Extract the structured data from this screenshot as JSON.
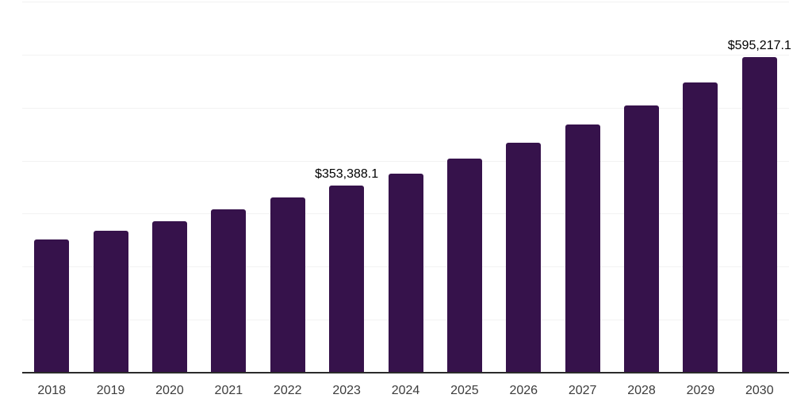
{
  "chart_data": {
    "type": "bar",
    "title": "",
    "xlabel": "",
    "ylabel": "",
    "categories": [
      "2018",
      "2019",
      "2020",
      "2021",
      "2022",
      "2023",
      "2024",
      "2025",
      "2026",
      "2027",
      "2028",
      "2029",
      "2030"
    ],
    "values": [
      251900,
      268300,
      286100,
      308600,
      330900,
      353388.1,
      375700,
      403900,
      433800,
      468100,
      503900,
      547100,
      595217.1
    ],
    "data_labels": [
      "",
      "",
      "",
      "",
      "",
      "$353,388.1",
      "",
      "",
      "",
      "",
      "",
      "",
      "$595,217.1"
    ],
    "ylim": [
      0,
      700000
    ],
    "gridline_step": 100000,
    "grid": "horizontal-light",
    "legend_position": "none",
    "colors": {
      "bar": "#36124B",
      "axis_line": "#2B2B2B",
      "gridline": "#F2F2F2",
      "tick_label": "#3C3C3C",
      "data_label": "#000000",
      "background": "#FFFFFF"
    }
  }
}
